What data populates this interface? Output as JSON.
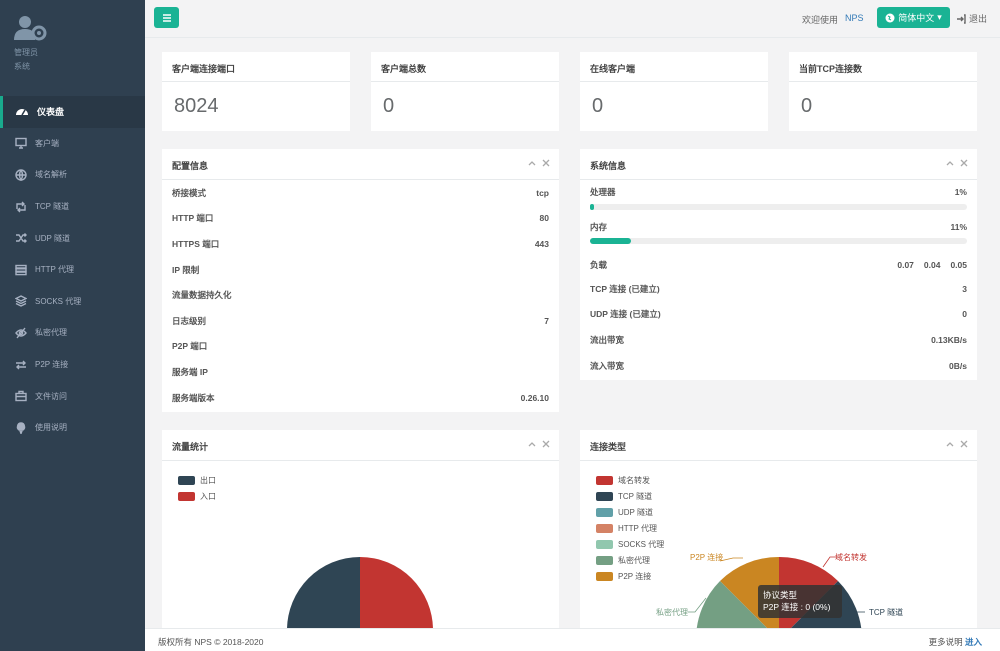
{
  "sidebar": {
    "role": "管理员",
    "system": "系统",
    "items": [
      {
        "label": "仪表盘",
        "icon": "dashboard-icon"
      },
      {
        "label": "客户端",
        "icon": "monitor-icon"
      },
      {
        "label": "域名解析",
        "icon": "globe-icon"
      },
      {
        "label": "TCP 隧道",
        "icon": "retweet-icon"
      },
      {
        "label": "UDP 隧道",
        "icon": "shuffle-icon"
      },
      {
        "label": "HTTP 代理",
        "icon": "server-icon"
      },
      {
        "label": "SOCKS 代理",
        "icon": "layers-icon"
      },
      {
        "label": "私密代理",
        "icon": "eye-slash-icon"
      },
      {
        "label": "P2P 连接",
        "icon": "exchange-icon"
      },
      {
        "label": "文件访问",
        "icon": "briefcase-icon"
      },
      {
        "label": "使用说明",
        "icon": "lightbulb-icon"
      }
    ]
  },
  "header": {
    "welcome": "欢迎使用",
    "app": "NPS",
    "language": "简体中文",
    "logout": "退出"
  },
  "stats": [
    {
      "title": "客户端连接端口",
      "value": "8024"
    },
    {
      "title": "客户端总数",
      "value": "0"
    },
    {
      "title": "在线客户端",
      "value": "0"
    },
    {
      "title": "当前TCP连接数",
      "value": "0"
    }
  ],
  "config": {
    "title": "配置信息",
    "rows": [
      {
        "key": "桥接模式",
        "value": "tcp"
      },
      {
        "key": "HTTP 端口",
        "value": "80"
      },
      {
        "key": "HTTPS 端口",
        "value": "443"
      },
      {
        "key": "IP 限制",
        "value": ""
      },
      {
        "key": "流量数据持久化",
        "value": ""
      },
      {
        "key": "日志级别",
        "value": "7"
      },
      {
        "key": "P2P 端口",
        "value": ""
      },
      {
        "key": "服务端 IP",
        "value": ""
      },
      {
        "key": "服务端版本",
        "value": "0.26.10"
      }
    ]
  },
  "sysinfo": {
    "title": "系统信息",
    "cpu_label": "处理器",
    "cpu_value": "1%",
    "cpu_fraction": 0.01,
    "mem_label": "内存",
    "mem_value": "11%",
    "mem_fraction": 0.11,
    "load_label": "负载",
    "load": [
      "0.07",
      "0.04",
      "0.05"
    ],
    "rows": [
      {
        "key": "TCP 连接 (已建立)",
        "value": "3"
      },
      {
        "key": "UDP 连接 (已建立)",
        "value": "0"
      },
      {
        "key": "流出带宽",
        "value": "0.13KB/s"
      },
      {
        "key": "流入带宽",
        "value": "0B/s"
      }
    ]
  },
  "traffic": {
    "title": "流量统计",
    "legend": [
      {
        "label": "出口",
        "color": "#2f4554"
      },
      {
        "label": "入口",
        "color": "#c23531"
      }
    ]
  },
  "conn": {
    "title": "连接类型",
    "legend": [
      {
        "label": "域名转发",
        "color": "#c23531"
      },
      {
        "label": "TCP 隧道",
        "color": "#2f4554"
      },
      {
        "label": "UDP 隧道",
        "color": "#61a0a8"
      },
      {
        "label": "HTTP 代理",
        "color": "#d48265"
      },
      {
        "label": "SOCKS 代理",
        "color": "#91c7ae"
      },
      {
        "label": "私密代理",
        "color": "#749f83"
      },
      {
        "label": "P2P 连接",
        "color": "#ca8622"
      }
    ],
    "pie_labels": {
      "p2p": "P2P 连接",
      "domain": "域名转发",
      "secret": "私密代理",
      "tcp": "TCP 隧道"
    },
    "tooltip_title": "协议类型",
    "tooltip_value": "P2P 连接 : 0 (0%)"
  },
  "footer": {
    "copyright": "版权所有 NPS © 2018-2020",
    "more": "更多说明",
    "enter": "进入"
  }
}
